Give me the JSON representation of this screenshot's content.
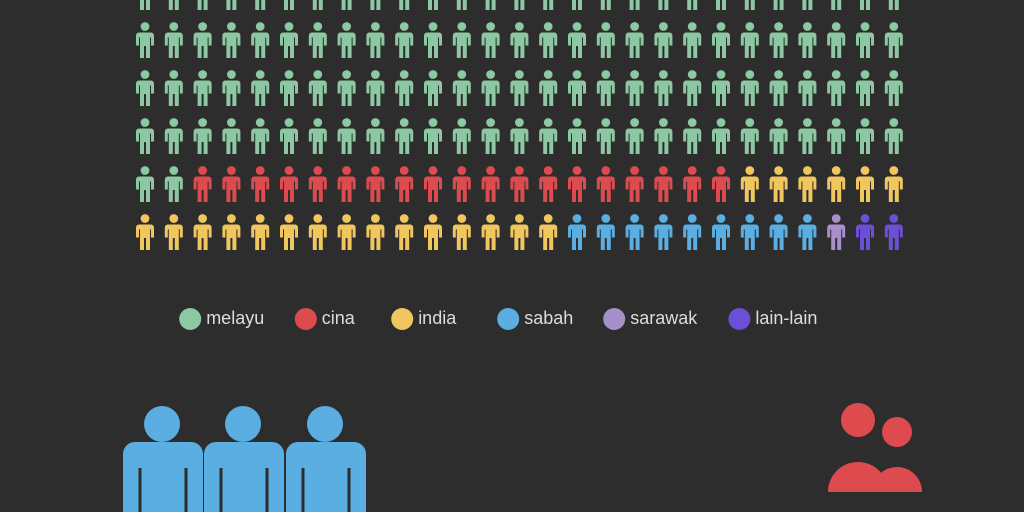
{
  "chart_data": {
    "type": "pictogram",
    "per_row": 27,
    "series": [
      {
        "name": "melayu",
        "color": "#8cc8a2",
        "values": 110
      },
      {
        "name": "cina",
        "color": "#de4b4f",
        "values": 19
      },
      {
        "name": "india",
        "color": "#f0c75e",
        "values": 21
      },
      {
        "name": "sabah",
        "color": "#5aaee2",
        "values": 9
      },
      {
        "name": "sarawak",
        "color": "#a78fcb",
        "values": 1
      },
      {
        "name": "lain-lain",
        "color": "#6b4fd8",
        "values": 2
      }
    ]
  }
}
